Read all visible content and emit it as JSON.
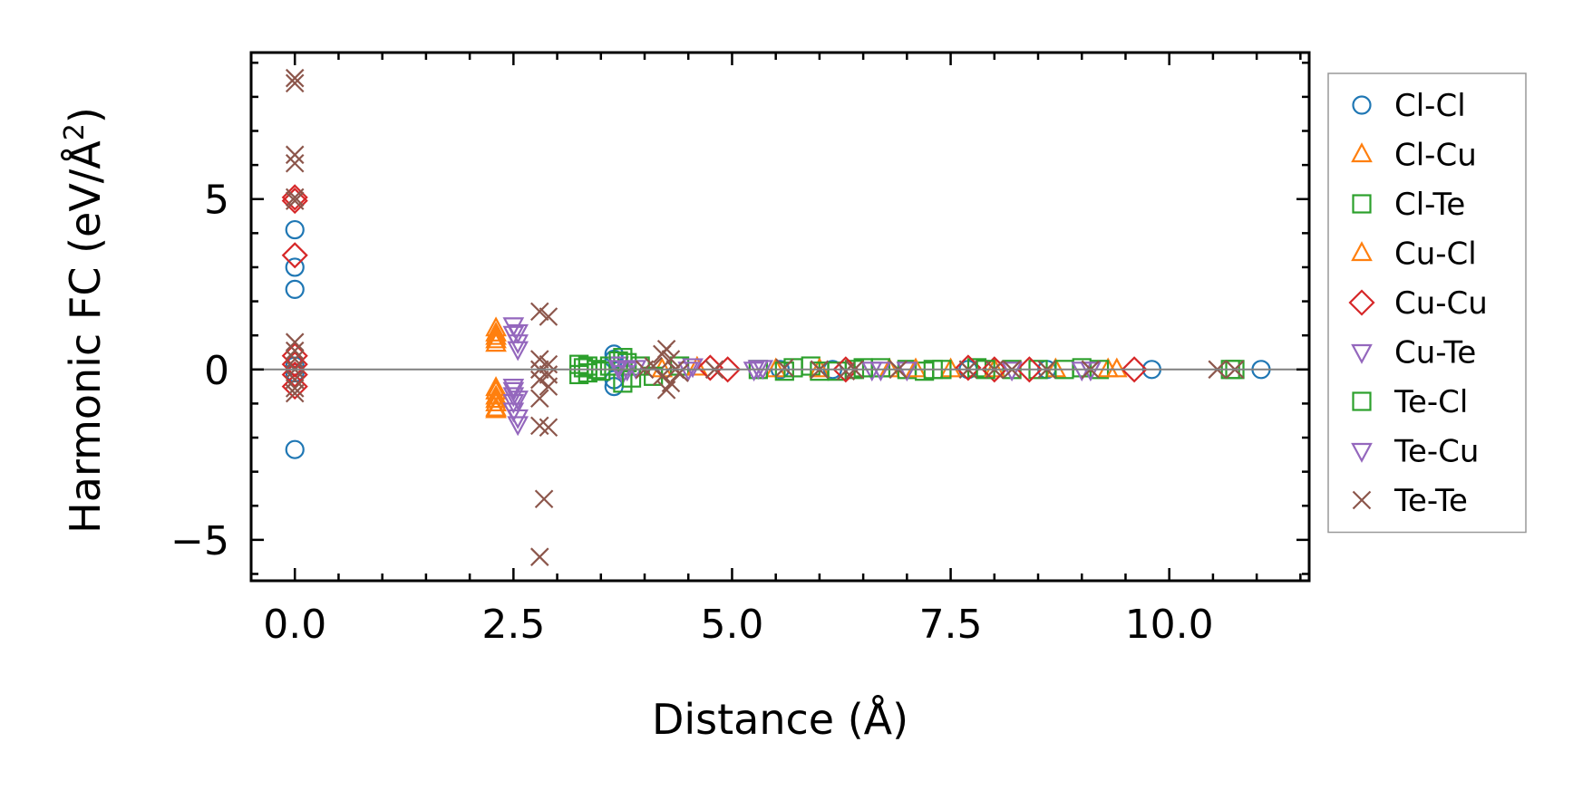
{
  "chart_data": {
    "type": "scatter",
    "title": "",
    "xlabel": "Distance (Å)",
    "ylabel_main": "Harmonic FC (eV/Å",
    "ylabel_sup": "2",
    "ylabel_close": ")",
    "xlim": [
      -0.5,
      11.6
    ],
    "ylim": [
      -6.2,
      9.3
    ],
    "xticks": [
      0.0,
      2.5,
      5.0,
      7.5,
      10.0
    ],
    "xtick_labels": [
      "0.0",
      "2.5",
      "5.0",
      "7.5",
      "10.0"
    ],
    "yticks": [
      -5,
      0,
      5
    ],
    "ytick_labels": [
      "−5",
      "0",
      "5"
    ],
    "zero_line": true,
    "grid": false,
    "legend_position": "right-outside",
    "series": [
      {
        "name": "Cl-Cl",
        "marker": "circle",
        "color": "#1f77b4",
        "points": [
          [
            0,
            4.1
          ],
          [
            0,
            3.0
          ],
          [
            0,
            2.35
          ],
          [
            0,
            -2.35
          ],
          [
            0,
            0.1
          ],
          [
            0,
            -0.1
          ],
          [
            3.65,
            0.45
          ],
          [
            3.65,
            0.3
          ],
          [
            3.65,
            -0.3
          ],
          [
            3.65,
            -0.5
          ],
          [
            5.55,
            0.0
          ],
          [
            6.15,
            0.0
          ],
          [
            7.7,
            0.0
          ],
          [
            8.6,
            0.0
          ],
          [
            9.8,
            0.0
          ],
          [
            11.05,
            0.0
          ]
        ]
      },
      {
        "name": "Cl-Cu",
        "marker": "triangle-up",
        "color": "#ff7f0e",
        "points": [
          [
            2.3,
            1.05
          ],
          [
            2.3,
            0.95
          ],
          [
            2.3,
            0.75
          ],
          [
            2.3,
            -0.55
          ],
          [
            2.3,
            -0.8
          ],
          [
            2.3,
            -1.0
          ],
          [
            2.3,
            -1.15
          ],
          [
            4.2,
            0.0
          ],
          [
            5.5,
            0.0
          ],
          [
            6.8,
            0.0
          ],
          [
            7.5,
            0.0
          ],
          [
            8.7,
            0.0
          ],
          [
            9.3,
            0.0
          ]
        ]
      },
      {
        "name": "Cl-Te",
        "marker": "square",
        "color": "#2ca02c",
        "points": [
          [
            3.25,
            0.15
          ],
          [
            3.25,
            -0.15
          ],
          [
            3.35,
            0.1
          ],
          [
            3.35,
            -0.1
          ],
          [
            3.45,
            0.0
          ],
          [
            3.6,
            0.1
          ],
          [
            3.75,
            0.35
          ],
          [
            3.75,
            -0.4
          ],
          [
            3.8,
            0.2
          ],
          [
            3.95,
            0.1
          ],
          [
            4.1,
            -0.2
          ],
          [
            4.4,
            0.1
          ],
          [
            5.3,
            0.0
          ],
          [
            5.6,
            -0.05
          ],
          [
            5.9,
            0.1
          ],
          [
            6.2,
            -0.05
          ],
          [
            6.4,
            0.0
          ],
          [
            6.7,
            0.05
          ],
          [
            7.0,
            0.0
          ],
          [
            7.2,
            -0.05
          ],
          [
            7.4,
            0.0
          ],
          [
            7.8,
            0.05
          ],
          [
            8.2,
            0.0
          ],
          [
            8.5,
            0.0
          ],
          [
            9.0,
            0.05
          ],
          [
            9.2,
            0.0
          ],
          [
            10.75,
            0.0
          ]
        ]
      },
      {
        "name": "Cu-Cl",
        "marker": "triangle-up",
        "color": "#ff7f0e",
        "points": [
          [
            2.3,
            1.2
          ],
          [
            2.3,
            0.85
          ],
          [
            2.3,
            -0.65
          ],
          [
            2.3,
            -0.9
          ],
          [
            2.3,
            -1.2
          ],
          [
            4.6,
            0.05
          ],
          [
            6.0,
            0.0
          ],
          [
            7.1,
            0.0
          ],
          [
            8.0,
            0.0
          ],
          [
            9.4,
            0.0
          ]
        ]
      },
      {
        "name": "Cu-Cu",
        "marker": "diamond",
        "color": "#d62728",
        "points": [
          [
            0,
            5.05
          ],
          [
            0,
            4.95
          ],
          [
            0,
            3.35
          ],
          [
            0,
            0.4
          ],
          [
            0,
            0.15
          ],
          [
            0,
            -0.15
          ],
          [
            0,
            -0.5
          ],
          [
            4.75,
            0.05
          ],
          [
            4.95,
            0.0
          ],
          [
            6.3,
            0.0
          ],
          [
            7.7,
            0.05
          ],
          [
            8.0,
            0.0
          ],
          [
            8.4,
            0.0
          ],
          [
            9.6,
            0.0
          ]
        ]
      },
      {
        "name": "Cu-Te",
        "marker": "triangle-down",
        "color": "#9467bd",
        "points": [
          [
            2.5,
            1.3
          ],
          [
            2.5,
            1.05
          ],
          [
            2.55,
            0.6
          ],
          [
            2.5,
            -0.5
          ],
          [
            2.5,
            -0.75
          ],
          [
            2.5,
            -0.95
          ],
          [
            2.5,
            -1.2
          ],
          [
            2.55,
            -1.6
          ],
          [
            3.7,
            0.15
          ],
          [
            3.75,
            -0.1
          ],
          [
            3.8,
            0.0
          ],
          [
            3.9,
            0.05
          ],
          [
            4.55,
            0.1
          ],
          [
            5.25,
            0.0
          ],
          [
            5.35,
            0.05
          ],
          [
            6.6,
            0.0
          ],
          [
            7.0,
            0.0
          ],
          [
            8.2,
            0.0
          ],
          [
            9.1,
            0.0
          ]
        ]
      },
      {
        "name": "Te-Cl",
        "marker": "square",
        "color": "#2ca02c",
        "points": [
          [
            3.3,
            0.05
          ],
          [
            3.5,
            -0.05
          ],
          [
            3.7,
            0.25
          ],
          [
            3.85,
            -0.25
          ],
          [
            5.7,
            0.05
          ],
          [
            6.0,
            -0.05
          ],
          [
            6.5,
            0.05
          ],
          [
            7.3,
            0.0
          ],
          [
            7.9,
            0.0
          ],
          [
            8.8,
            0.0
          ],
          [
            10.7,
            0.0
          ]
        ]
      },
      {
        "name": "Te-Cu",
        "marker": "triangle-down",
        "color": "#9467bd",
        "points": [
          [
            2.55,
            1.1
          ],
          [
            2.55,
            0.8
          ],
          [
            2.5,
            -0.6
          ],
          [
            2.55,
            -0.85
          ],
          [
            2.55,
            -1.4
          ],
          [
            3.7,
            0.05
          ],
          [
            4.5,
            0.0
          ],
          [
            5.3,
            0.05
          ],
          [
            6.7,
            0.0
          ],
          [
            9.0,
            0.0
          ]
        ]
      },
      {
        "name": "Te-Te",
        "marker": "x",
        "color": "#8c564b",
        "points": [
          [
            0,
            8.55
          ],
          [
            0,
            8.4
          ],
          [
            0,
            6.3
          ],
          [
            0,
            6.05
          ],
          [
            0,
            5.05
          ],
          [
            0,
            4.95
          ],
          [
            0,
            0.8
          ],
          [
            0,
            0.55
          ],
          [
            0,
            0.3
          ],
          [
            0,
            0.0
          ],
          [
            0,
            -0.3
          ],
          [
            0,
            -0.55
          ],
          [
            0,
            -0.7
          ],
          [
            2.8,
            1.7
          ],
          [
            2.9,
            1.55
          ],
          [
            2.8,
            0.3
          ],
          [
            2.9,
            0.15
          ],
          [
            2.8,
            0.0
          ],
          [
            2.9,
            -0.15
          ],
          [
            2.8,
            -0.3
          ],
          [
            2.9,
            -0.5
          ],
          [
            2.8,
            -0.85
          ],
          [
            2.8,
            -1.65
          ],
          [
            2.9,
            -1.7
          ],
          [
            2.85,
            -3.8
          ],
          [
            2.8,
            -5.5
          ],
          [
            4.2,
            0.45
          ],
          [
            4.25,
            0.6
          ],
          [
            4.3,
            0.3
          ],
          [
            4.35,
            0.0
          ],
          [
            4.2,
            -0.2
          ],
          [
            4.3,
            -0.4
          ],
          [
            4.25,
            -0.6
          ],
          [
            4.1,
            0.1
          ],
          [
            4.4,
            -0.1
          ],
          [
            4.0,
            0.0
          ],
          [
            4.8,
            0.0
          ],
          [
            5.6,
            0.05
          ],
          [
            6.0,
            0.0
          ],
          [
            6.3,
            -0.05
          ],
          [
            6.4,
            0.0
          ],
          [
            6.9,
            0.0
          ],
          [
            7.7,
            0.0
          ],
          [
            8.0,
            0.0
          ],
          [
            8.2,
            0.0
          ],
          [
            8.6,
            0.0
          ],
          [
            9.1,
            0.0
          ],
          [
            10.55,
            0.0
          ],
          [
            10.75,
            0.0
          ]
        ]
      }
    ]
  }
}
